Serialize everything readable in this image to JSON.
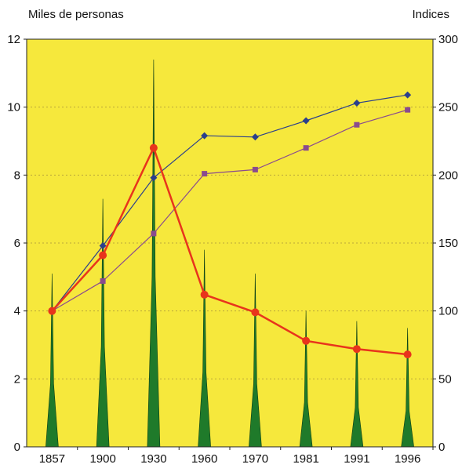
{
  "chart_data": {
    "type": "bar",
    "ylabel_left": "Miles de personas",
    "ylabel_right": "Indices",
    "categories": [
      "1857",
      "1900",
      "1930",
      "1960",
      "1970",
      "1981",
      "1991",
      "1996"
    ],
    "ylim_left": [
      0,
      12
    ],
    "yticks_left": [
      "0",
      "2",
      "4",
      "6",
      "8",
      "10",
      "12"
    ],
    "ylim_right": [
      0,
      300
    ],
    "yticks_right": [
      "0",
      "50",
      "100",
      "150",
      "200",
      "250",
      "300"
    ],
    "grid": "horizontal dotted",
    "background_color": "#f6e83c",
    "series": [
      {
        "type": "spike-bar",
        "axis": "left",
        "color": "#1f7a2a",
        "values": [
          5.1,
          7.3,
          11.4,
          5.8,
          5.1,
          4.0,
          3.7,
          3.5
        ]
      },
      {
        "type": "line",
        "axis": "right",
        "color": "#2b3f8c",
        "marker": "diamond",
        "values": [
          100,
          148,
          198,
          229,
          228,
          240,
          253,
          259
        ]
      },
      {
        "type": "line",
        "axis": "right",
        "color": "#8a4b8e",
        "marker": "square",
        "values": [
          100,
          122,
          157,
          201,
          204,
          220,
          237,
          248
        ]
      },
      {
        "type": "line",
        "axis": "right",
        "color": "#e8341c",
        "marker": "circle",
        "values": [
          100,
          141,
          220,
          112,
          99,
          78,
          72,
          68
        ]
      }
    ]
  }
}
